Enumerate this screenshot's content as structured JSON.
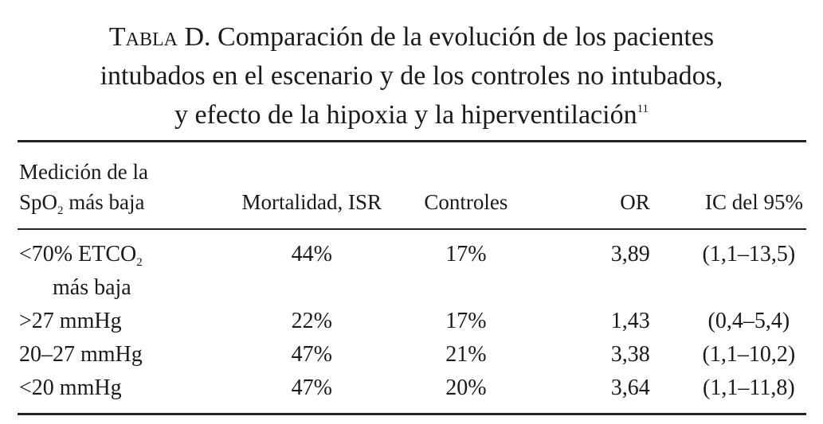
{
  "title": {
    "label": "Tabla D.",
    "lines": [
      "Comparación de la evolución de los pacientes",
      "intubados en el escenario y de los controles no intubados,",
      "y efecto de la hipoxia y la hiperventilación"
    ],
    "ref": "11"
  },
  "table": {
    "header": [
      {
        "line1": "Medición de la",
        "text": "SpO",
        "sub": "2",
        "after": " más baja"
      },
      "Mortalidad, ISR",
      "Controles",
      "OR",
      "IC del 95%"
    ],
    "rows": [
      [
        {
          "text": "<70% ETCO",
          "sub": "2",
          "line2": "más baja"
        },
        "44%",
        "17%",
        "3,89",
        "(1,1–13,5)"
      ],
      [
        ">27 mmHg",
        "22%",
        "17%",
        "1,43",
        "(0,4–5,4)"
      ],
      [
        "20–27 mmHg",
        "47%",
        "21%",
        "3,38",
        "(1,1–10,2)"
      ],
      [
        "<20 mmHg",
        "47%",
        "20%",
        "3,64",
        "(1,1–11,8)"
      ]
    ]
  }
}
